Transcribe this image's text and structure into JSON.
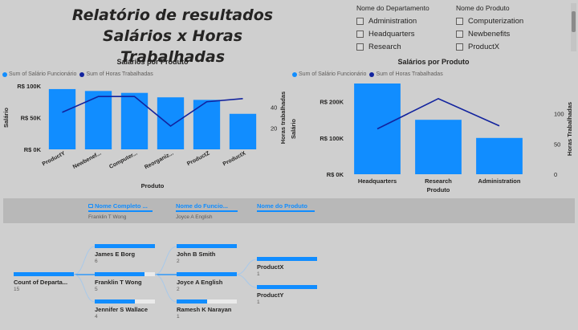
{
  "report": {
    "title_line1": "Relatório de resultados",
    "title_line2": "Salários x Horas Trabalhadas"
  },
  "slicers": {
    "department": {
      "header": "Nome do Departamento",
      "items": [
        "Administration",
        "Headquarters",
        "Research"
      ]
    },
    "product": {
      "header": "Nome do Produto",
      "items": [
        "Computerization",
        "Newbenefits",
        "ProductX"
      ]
    }
  },
  "colors": {
    "bar": "#118dff",
    "line": "#12239e"
  },
  "charts": {
    "legend_salary": "Sum of Salário Funcionário",
    "legend_hours": "Sum of Horas Trabalhadas"
  },
  "chart_data": [
    {
      "type": "bar",
      "title": "Salários por Produto",
      "categories": [
        "ProductY",
        "Newbenef...",
        "Computer...",
        "Reorganiz...",
        "ProductZ",
        "ProductX"
      ],
      "series": [
        {
          "name": "Sum of Salário Funcionário",
          "type": "bar",
          "axis": "left",
          "values": [
            95000,
            92000,
            89000,
            82000,
            78000,
            56000
          ]
        },
        {
          "name": "Sum of Horas Trabalhadas",
          "type": "line",
          "axis": "right",
          "values": [
            35,
            50,
            50,
            22,
            45,
            48
          ]
        }
      ],
      "xlabel": "Produto",
      "ylabel": "Salário",
      "y2label": "Horas trabalhadas",
      "ylim": [
        0,
        100000
      ],
      "y2lim": [
        0,
        60
      ],
      "yticks": [
        "R$ 0K",
        "R$ 50K",
        "R$ 100K"
      ],
      "y2ticks": [
        "20",
        "40"
      ],
      "legend": "top-left"
    },
    {
      "type": "bar",
      "title": "Salários por Produto",
      "categories": [
        "Headquarters",
        "Research",
        "Administration"
      ],
      "series": [
        {
          "name": "Sum of Salário Funcionário",
          "type": "bar",
          "axis": "left",
          "values": [
            250000,
            150000,
            100000
          ]
        },
        {
          "name": "Sum of Horas Trabalhadas",
          "type": "line",
          "axis": "right",
          "values": [
            75,
            125,
            80
          ]
        }
      ],
      "xlabel": "Produto",
      "ylabel": "Salário",
      "y2label": "Horas Trabalhadas",
      "ylim": [
        0,
        250000
      ],
      "y2lim": [
        0,
        150
      ],
      "yticks": [
        "R$ 0K",
        "R$ 100K",
        "R$ 200K"
      ],
      "y2ticks": [
        "0",
        "50",
        "100"
      ],
      "legend": "top-left"
    }
  ],
  "band": {
    "col1_header": "Nome Completo ...",
    "col1_value": "Franklin T Wong",
    "col2_header": "Nome do Funcio...",
    "col2_value": "Joyce A English",
    "col3_header": "Nome do Produto"
  },
  "tree": {
    "root": {
      "label": "Count of Departa...",
      "value": "15",
      "fill": 1.0
    },
    "level1": [
      {
        "label": "James E Borg",
        "value": "6",
        "fill": 1.0
      },
      {
        "label": "Franklin T Wong",
        "value": "5",
        "fill": 0.83
      },
      {
        "label": "Jennifer S Wallace",
        "value": "4",
        "fill": 0.67
      }
    ],
    "level2": [
      {
        "label": "John B Smith",
        "value": "2",
        "fill": 1.0
      },
      {
        "label": "Joyce A English",
        "value": "2",
        "fill": 1.0
      },
      {
        "label": "Ramesh K Narayan",
        "value": "1",
        "fill": 0.5
      }
    ],
    "level3": [
      {
        "label": "ProductX",
        "value": "1",
        "fill": 1.0
      },
      {
        "label": "ProductY",
        "value": "1",
        "fill": 1.0
      }
    ]
  }
}
